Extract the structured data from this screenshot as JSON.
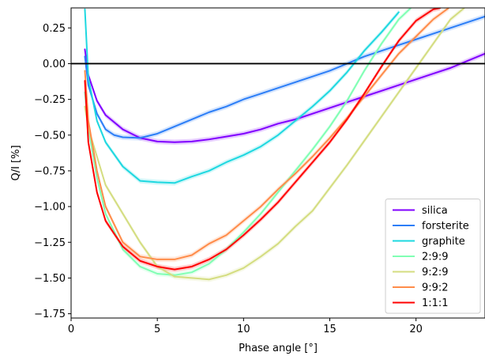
{
  "chart_data": {
    "type": "line",
    "title": "",
    "xlabel": "Phase angle [°]",
    "ylabel": "Q/I [%]",
    "xlim": [
      0,
      24
    ],
    "ylim": [
      -1.78,
      0.39
    ],
    "xticks": [
      0,
      5,
      10,
      15,
      20
    ],
    "yticks": [
      -1.75,
      -1.5,
      -1.25,
      -1.0,
      -0.75,
      -0.5,
      -0.25,
      0.0,
      0.25
    ],
    "ytick_labels": [
      "−1.75",
      "−1.50",
      "−1.25",
      "−1.00",
      "−0.75",
      "−0.50",
      "−0.25",
      "0.00",
      "0.25"
    ],
    "xtick_labels": [
      "0",
      "5",
      "10",
      "15",
      "20"
    ],
    "reference_line_y": 0,
    "grid": false,
    "legend_position": "lower-right",
    "uncertainty_bands": true,
    "series": [
      {
        "name": "silica",
        "color": "#8000ff",
        "x": [
          0.8,
          1,
          1.5,
          2,
          3,
          4,
          5,
          6,
          7,
          8,
          9,
          10,
          11,
          12,
          13,
          14,
          15,
          16,
          17,
          18,
          19,
          20,
          21,
          22,
          23,
          24
        ],
        "y": [
          0.1,
          -0.08,
          -0.26,
          -0.36,
          -0.46,
          -0.52,
          -0.545,
          -0.55,
          -0.545,
          -0.53,
          -0.51,
          -0.49,
          -0.46,
          -0.42,
          -0.39,
          -0.35,
          -0.31,
          -0.27,
          -0.23,
          -0.19,
          -0.15,
          -0.11,
          -0.07,
          -0.03,
          0.02,
          0.07
        ]
      },
      {
        "name": "forsterite",
        "color": "#2c7ef7",
        "x": [
          0.8,
          1,
          1.5,
          2,
          2.5,
          3,
          4,
          5,
          6,
          7,
          8,
          9,
          10,
          11,
          12,
          13,
          14,
          15,
          16,
          17,
          18,
          19,
          20,
          21,
          22,
          23,
          24
        ],
        "y": [
          0.05,
          -0.15,
          -0.35,
          -0.46,
          -0.5,
          -0.515,
          -0.52,
          -0.49,
          -0.44,
          -0.39,
          -0.34,
          -0.3,
          -0.25,
          -0.21,
          -0.17,
          -0.13,
          -0.09,
          -0.05,
          0.0,
          0.05,
          0.09,
          0.13,
          0.17,
          0.21,
          0.25,
          0.29,
          0.33
        ]
      },
      {
        "name": "graphite",
        "color": "#1ed8e0",
        "x": [
          0.8,
          1,
          1.5,
          2,
          3,
          4,
          5,
          6,
          7,
          8,
          9,
          10,
          11,
          12,
          13,
          14,
          15,
          16,
          17,
          18,
          19
        ],
        "y": [
          0.38,
          -0.1,
          -0.4,
          -0.55,
          -0.72,
          -0.82,
          -0.83,
          -0.835,
          -0.79,
          -0.75,
          -0.69,
          -0.64,
          -0.58,
          -0.5,
          -0.4,
          -0.3,
          -0.19,
          -0.06,
          0.09,
          0.22,
          0.36
        ]
      },
      {
        "name": "2:9:9",
        "color": "#80ffb4",
        "x": [
          0.8,
          1,
          1.5,
          2,
          3,
          4,
          5,
          6,
          7,
          8,
          9,
          10,
          11,
          12,
          13,
          14,
          15,
          16,
          17,
          18,
          19,
          19.7
        ],
        "y": [
          -0.2,
          -0.45,
          -0.8,
          -1.05,
          -1.3,
          -1.42,
          -1.47,
          -1.48,
          -1.46,
          -1.4,
          -1.3,
          -1.18,
          -1.05,
          -0.9,
          -0.75,
          -0.6,
          -0.44,
          -0.26,
          -0.05,
          0.14,
          0.31,
          0.39
        ]
      },
      {
        "name": "9:2:9",
        "color": "#d4dd80",
        "x": [
          0.8,
          1,
          1.5,
          2,
          3,
          4,
          5,
          6,
          7,
          8,
          9,
          10,
          11,
          12,
          13,
          14,
          15,
          16,
          17,
          18,
          19,
          20,
          21,
          22,
          22.8
        ],
        "y": [
          -0.3,
          -0.45,
          -0.65,
          -0.85,
          -1.05,
          -1.25,
          -1.42,
          -1.49,
          -1.5,
          -1.51,
          -1.48,
          -1.43,
          -1.35,
          -1.26,
          -1.14,
          -1.03,
          -0.87,
          -0.71,
          -0.54,
          -0.37,
          -0.2,
          -0.03,
          0.14,
          0.31,
          0.39
        ]
      },
      {
        "name": "9:9:2",
        "color": "#ff8c4a",
        "x": [
          0.8,
          1,
          1.5,
          2,
          3,
          4,
          5,
          6,
          7,
          8,
          9,
          10,
          11,
          12,
          13,
          14,
          15,
          16,
          17,
          18,
          19,
          20,
          21,
          21.9
        ],
        "y": [
          -0.05,
          -0.4,
          -0.75,
          -1.0,
          -1.25,
          -1.35,
          -1.37,
          -1.37,
          -1.34,
          -1.26,
          -1.2,
          -1.1,
          -1.0,
          -0.88,
          -0.77,
          -0.65,
          -0.52,
          -0.38,
          -0.23,
          -0.08,
          0.07,
          0.19,
          0.31,
          0.39
        ]
      },
      {
        "name": "1:1:1",
        "color": "#ff0000",
        "x": [
          0.8,
          1,
          1.5,
          2,
          3,
          4,
          5,
          6,
          7,
          8,
          9,
          10,
          11,
          12,
          13,
          14,
          15,
          16,
          17,
          18,
          19,
          20,
          21,
          21.4
        ],
        "y": [
          -0.12,
          -0.55,
          -0.9,
          -1.1,
          -1.28,
          -1.38,
          -1.42,
          -1.44,
          -1.42,
          -1.37,
          -1.3,
          -1.2,
          -1.09,
          -0.97,
          -0.83,
          -0.69,
          -0.55,
          -0.39,
          -0.21,
          -0.02,
          0.16,
          0.3,
          0.38,
          0.39
        ]
      }
    ]
  }
}
